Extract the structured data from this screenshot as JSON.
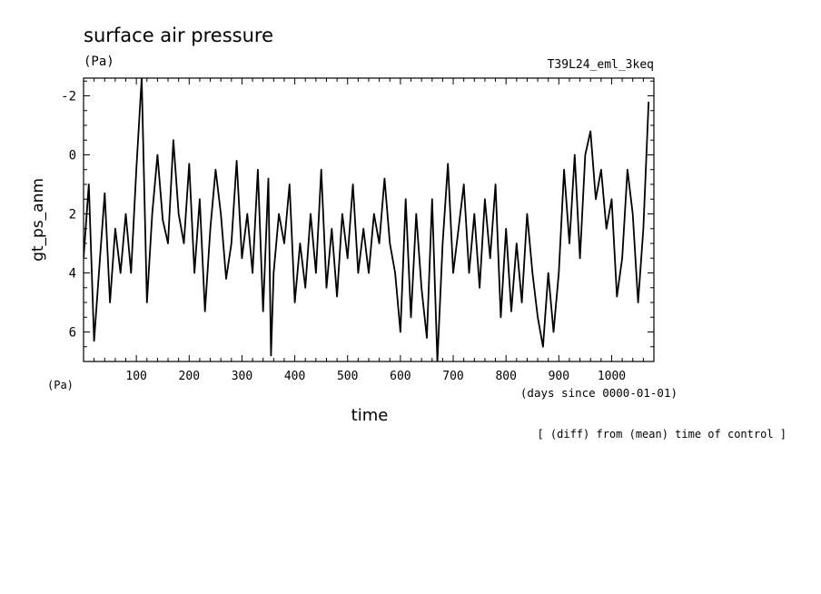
{
  "chart_data": {
    "type": "line",
    "title": "surface air pressure",
    "units_label": "(Pa)",
    "run_label": "T39L24_eml_3keq",
    "ylabel": "gt_ps_anm",
    "xlabel": "time",
    "x_units": "(days since 0000-01-01)",
    "y_units_lower": "(Pa)",
    "note": "[ (diff) from (mean) time of control ]",
    "xlim": [
      0,
      1080
    ],
    "ylim": [
      7,
      -2.6
    ],
    "y_inverted": true,
    "grid": false,
    "x_ticks": [
      100,
      200,
      300,
      400,
      500,
      600,
      700,
      800,
      900,
      1000
    ],
    "y_ticks": [
      -2,
      0,
      2,
      4,
      6
    ],
    "y_tick_labels": [
      "-2",
      "0",
      "2",
      "4",
      "6"
    ],
    "series": [
      {
        "x": [
          0,
          10,
          20,
          30,
          40,
          50,
          60,
          70,
          80,
          90,
          100,
          110,
          120,
          130,
          140,
          150,
          160,
          170,
          180,
          190,
          200,
          210,
          220,
          230,
          240,
          250,
          260,
          270,
          280,
          290,
          300,
          310,
          320,
          330,
          340,
          350,
          355,
          360,
          370,
          380,
          390,
          400,
          410,
          420,
          430,
          440,
          450,
          460,
          470,
          480,
          490,
          500,
          510,
          520,
          530,
          540,
          550,
          560,
          570,
          580,
          590,
          600,
          610,
          620,
          630,
          640,
          650,
          660,
          670,
          680,
          690,
          700,
          710,
          720,
          730,
          740,
          750,
          760,
          770,
          780,
          790,
          800,
          810,
          820,
          830,
          840,
          850,
          860,
          870,
          880,
          890,
          900,
          910,
          920,
          930,
          940,
          950,
          960,
          970,
          980,
          990,
          1000,
          1010,
          1020,
          1030,
          1040,
          1050,
          1060,
          1070
        ],
        "y": [
          3.5,
          1.0,
          6.3,
          3.8,
          1.3,
          5.0,
          2.5,
          4.0,
          2.0,
          4.0,
          0.5,
          -2.6,
          5.0,
          2.0,
          0.0,
          2.2,
          3.0,
          -0.5,
          2.0,
          3.0,
          0.3,
          4.0,
          1.5,
          5.3,
          2.5,
          0.5,
          2.0,
          4.2,
          3.0,
          0.2,
          3.5,
          2.0,
          4.0,
          0.5,
          5.3,
          0.8,
          6.8,
          4.0,
          2.0,
          3.0,
          1.0,
          5.0,
          3.0,
          4.5,
          2.0,
          4.0,
          0.5,
          4.5,
          2.5,
          4.8,
          2.0,
          3.5,
          1.0,
          4.0,
          2.5,
          4.0,
          2.0,
          3.0,
          0.8,
          3.0,
          4.0,
          6.0,
          1.5,
          5.5,
          2.0,
          4.5,
          6.2,
          1.5,
          7.0,
          3.0,
          0.3,
          4.0,
          2.5,
          1.0,
          4.0,
          2.0,
          4.5,
          1.5,
          3.5,
          1.0,
          5.5,
          2.5,
          5.3,
          3.0,
          5.0,
          2.0,
          4.0,
          5.5,
          6.5,
          4.0,
          6.0,
          4.0,
          0.5,
          3.0,
          0.0,
          3.5,
          0.0,
          -0.8,
          1.5,
          0.5,
          2.5,
          1.5,
          4.8,
          3.5,
          0.5,
          2.0,
          5.0,
          2.5,
          -1.8
        ]
      }
    ]
  }
}
